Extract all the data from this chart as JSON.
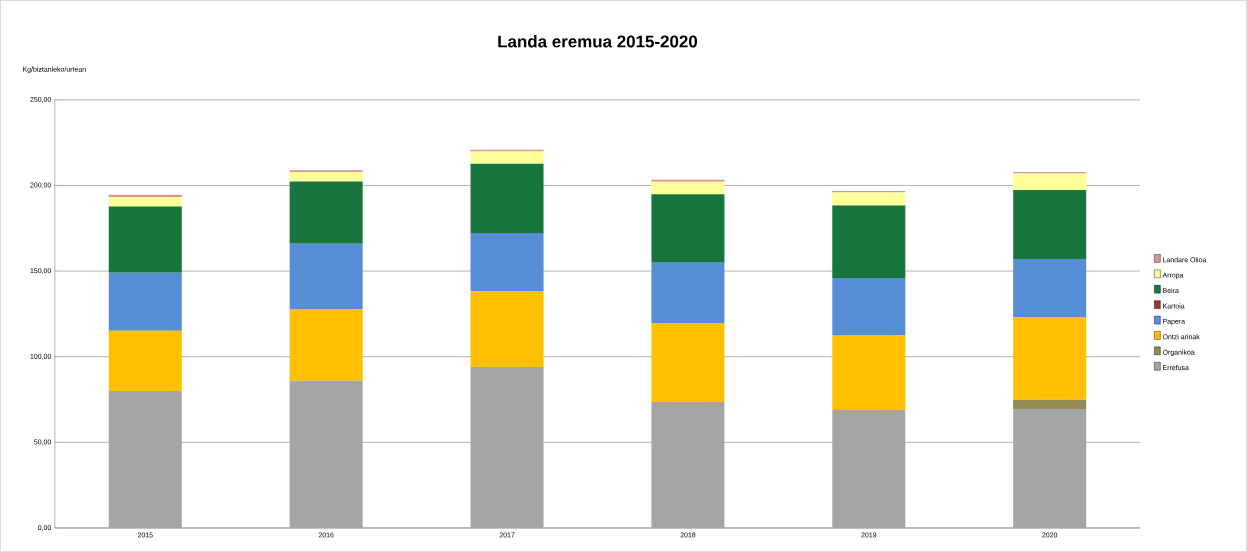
{
  "chart_data": {
    "type": "bar",
    "title": "Landa eremua   2015-2020",
    "ylabel": "Kg/biztanleko/urtean",
    "categories": [
      "2015",
      "2016",
      "2017",
      "2018",
      "2019",
      "2020"
    ],
    "stacked": true,
    "grid": "y",
    "legend": "right",
    "ylim": [
      0,
      250
    ],
    "yticks": [
      {
        "value": 0,
        "label": "0,00"
      },
      {
        "value": 50,
        "label": "50,00"
      },
      {
        "value": 100,
        "label": "100,00"
      },
      {
        "value": 150,
        "label": "150,00"
      },
      {
        "value": 200,
        "label": "200,00"
      },
      {
        "value": 250,
        "label": "250,00"
      }
    ],
    "series": [
      {
        "name": "Errefusa",
        "color": "#a5a5a5",
        "values": [
          80.0,
          85.9,
          94.0,
          73.6,
          68.9,
          69.5
        ]
      },
      {
        "name": "Organikoa",
        "color": "#948a54",
        "values": [
          0,
          0,
          0,
          0,
          0,
          5.3
        ]
      },
      {
        "name": "Ontzi arinak",
        "color": "#ffc000",
        "values": [
          35.1,
          42.0,
          44.4,
          46.1,
          43.8,
          48.4
        ]
      },
      {
        "name": "Papera",
        "color": "#558ed5",
        "values": [
          33.9,
          38.0,
          33.9,
          35.1,
          33.3,
          33.9
        ]
      },
      {
        "name": "Kartoia",
        "color": "#953735",
        "values": [
          0,
          0,
          0,
          0,
          0,
          0
        ]
      },
      {
        "name": "Beira",
        "color": "#17763d",
        "values": [
          38.7,
          36.4,
          40.3,
          40.1,
          42.3,
          40.3
        ]
      },
      {
        "name": "Arropa",
        "color": "#ffff99",
        "values": [
          5.5,
          5.5,
          7.2,
          7.2,
          7.6,
          9.6
        ]
      },
      {
        "name": "Landare Olioa",
        "color": "#d99694",
        "values": [
          1.3,
          1.1,
          1.0,
          1.2,
          0.8,
          0.8
        ]
      }
    ]
  }
}
